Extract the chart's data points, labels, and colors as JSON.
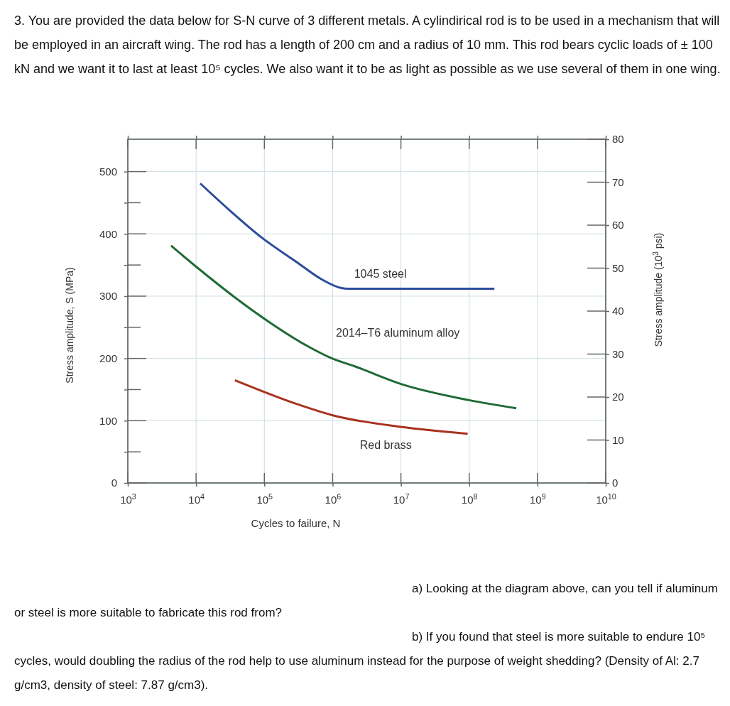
{
  "chart_data": {
    "type": "line",
    "title": "3. You are provided the data below for S-N curve of 3 different metals. A cylindirical rod is to be used in a mechanism that will be employed in an aircraft wing. The rod has a length of 200 cm and a radius of 10 mm. This rod bears cyclic loads of ± 100 kN and we want it to last at least 10⁵ cycles. We also want it to be as light as possible as we use several of them in one wing.",
    "xlabel": "Cycles to failure, N",
    "ylabel": "Stress amplitude, S (MPa)",
    "y2label": "Stress amplitude (10$^{3}$ psi)",
    "log": "x",
    "grid": true,
    "legend": false,
    "marker": "none",
    "line_style": "solid",
    "xlim": [
      1000,
      10000000000
    ],
    "xticks": [
      {
        "value": 1000,
        "label": "10$^{3}$"
      },
      {
        "value": 10000,
        "label": "10$^{4}$"
      },
      {
        "value": 100000,
        "label": "10$^{5}$"
      },
      {
        "value": 1000000,
        "label": "10$^{6}$"
      },
      {
        "value": 10000000,
        "label": "10$^{7}$"
      },
      {
        "value": 100000000,
        "label": "10$^{8}$"
      },
      {
        "value": 1000000000,
        "label": "10$^{9}$"
      },
      {
        "value": 10000000000,
        "label": "10$^{10}$"
      }
    ],
    "ylim": [
      0,
      552
    ],
    "yticks": [
      0,
      {
        "value": 50,
        "label": null
      },
      100,
      {
        "value": 150,
        "label": null
      },
      200,
      {
        "value": 250,
        "label": null
      },
      300,
      {
        "value": 350,
        "label": null
      },
      400,
      {
        "value": 450,
        "label": null
      },
      500
    ],
    "y2lim": [
      0,
      80
    ],
    "y2ticks": [
      0,
      10,
      20,
      30,
      40,
      50,
      60,
      70,
      80
    ],
    "series": [
      {
        "name": "1045 steel",
        "color": "#2b4c9b",
        "x": [
          11500,
          31600,
          89000,
          295000,
          690000,
          1350000,
          1660000,
          234000000
        ],
        "values": [
          481,
          437,
          395,
          355,
          327,
          313,
          312,
          312
        ]
      },
      {
        "name": "2014–T6 aluminum alloy",
        "color": "#1f6b35",
        "x": [
          4300,
          11200,
          37000,
          123000,
          410000,
          980000,
          2140000,
          10000000,
          100000000,
          490000000
        ],
        "values": [
          381,
          343,
          298,
          257,
          221,
          200,
          187,
          159,
          133,
          120
        ]
      },
      {
        "name": "Red brass",
        "color": "#a8321f",
        "x": [
          37000,
          295000,
          980000,
          10000000,
          95000000
        ],
        "values": [
          165,
          127,
          109,
          90,
          79
        ]
      }
    ],
    "annotations": [
      "a) Looking at the diagram above, can you tell if aluminum or steel is more suitable to fabricate this rod from?",
      "b) If you found that steel is more suitable to endure 10⁵ cycles, would doubling the radius of the rod help to use aluminum instead for the purpose of weight shedding? (Density of Al: 2.7 g/cm3, density of steel: 7.87 g/cm3)."
    ]
  }
}
